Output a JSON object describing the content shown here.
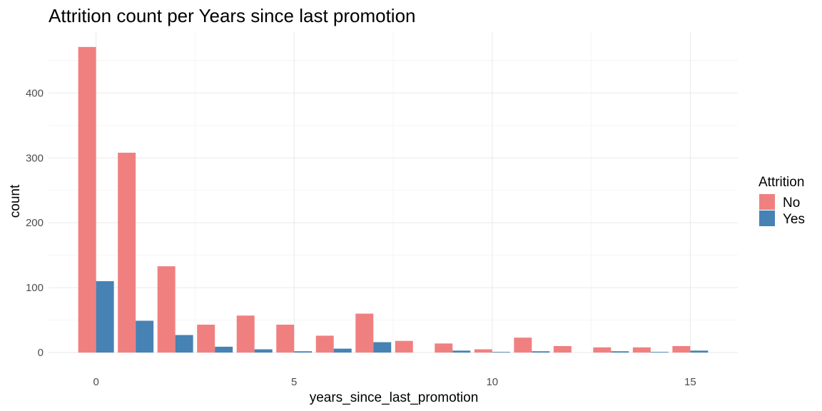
{
  "chart_data": {
    "type": "bar",
    "title": "Attrition count per Years since last promotion",
    "xlabel": "years_since_last_promotion",
    "ylabel": "count",
    "x": [
      0,
      1,
      2,
      3,
      4,
      5,
      6,
      7,
      8,
      9,
      10,
      11,
      12,
      13,
      14,
      15
    ],
    "series": [
      {
        "name": "No",
        "color": "#f08080",
        "values": [
          471,
          308,
          133,
          43,
          57,
          43,
          26,
          60,
          18,
          14,
          5,
          23,
          10,
          8,
          8,
          10
        ]
      },
      {
        "name": "Yes",
        "color": "#4682b4",
        "values": [
          110,
          49,
          27,
          9,
          5,
          2,
          6,
          16,
          0,
          3,
          1,
          2,
          0,
          2,
          1,
          3
        ]
      }
    ],
    "xlim": [
      -1.2,
      16.2
    ],
    "ylim": [
      -1,
      495
    ],
    "x_ticks": [
      0,
      5,
      10,
      15
    ],
    "y_ticks": [
      0,
      100,
      200,
      300,
      400
    ],
    "legend": {
      "title": "Attrition",
      "position": "right"
    },
    "grid": true
  }
}
